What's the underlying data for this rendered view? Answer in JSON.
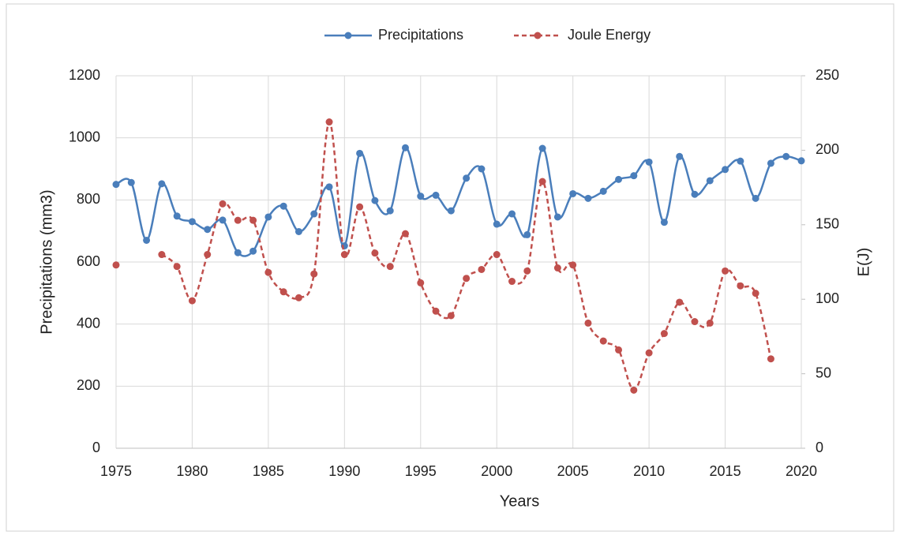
{
  "chart_data": {
    "type": "line",
    "x": [
      1975,
      1976,
      1977,
      1978,
      1979,
      1980,
      1981,
      1982,
      1983,
      1984,
      1985,
      1986,
      1987,
      1988,
      1989,
      1990,
      1991,
      1992,
      1993,
      1994,
      1995,
      1996,
      1997,
      1998,
      1999,
      2000,
      2001,
      2002,
      2003,
      2004,
      2005,
      2006,
      2007,
      2008,
      2009,
      2010,
      2011,
      2012,
      2013,
      2014,
      2015,
      2016,
      2017,
      2018,
      2019,
      2020
    ],
    "series": [
      {
        "name": "Precipitations",
        "color": "#4a7ebb",
        "smooth": true,
        "dashed": false,
        "values": [
          850,
          856,
          670,
          852,
          748,
          730,
          705,
          735,
          630,
          635,
          745,
          780,
          698,
          755,
          842,
          652,
          950,
          798,
          765,
          968,
          812,
          815,
          765,
          870,
          900,
          722,
          755,
          688,
          966,
          745,
          820,
          805,
          828,
          866,
          878,
          922,
          728,
          940,
          818,
          862,
          898,
          925,
          805,
          918,
          940,
          926
        ]
      },
      {
        "name": "Joule Energy",
        "color": "#c0504d",
        "axis": "y2",
        "smooth": true,
        "dashed": true,
        "values": [
          123,
          null,
          null,
          130,
          122,
          99,
          130,
          164,
          153,
          153,
          118,
          105,
          101,
          117,
          219,
          130,
          162,
          131,
          122,
          144,
          111,
          92,
          89,
          114,
          120,
          130,
          112,
          119,
          179,
          121,
          123,
          84,
          72,
          66,
          39,
          64,
          77,
          98,
          85,
          84,
          119,
          109,
          104,
          60,
          null,
          null
        ]
      }
    ],
    "xlabel": "Years",
    "ylabel": "Precipitations (mm3)",
    "y2label": "E(J)",
    "xlim": [
      1975,
      2020
    ],
    "xticks": [
      1975,
      1980,
      1985,
      1990,
      1995,
      2000,
      2005,
      2010,
      2015,
      2020
    ],
    "ylim": [
      0,
      1200
    ],
    "yticks": [
      0,
      200,
      400,
      600,
      800,
      1000,
      1200
    ],
    "y2lim": [
      0,
      250
    ],
    "y2ticks": [
      0,
      50,
      100,
      150,
      200,
      250
    ],
    "grid": true,
    "legend": "top"
  }
}
